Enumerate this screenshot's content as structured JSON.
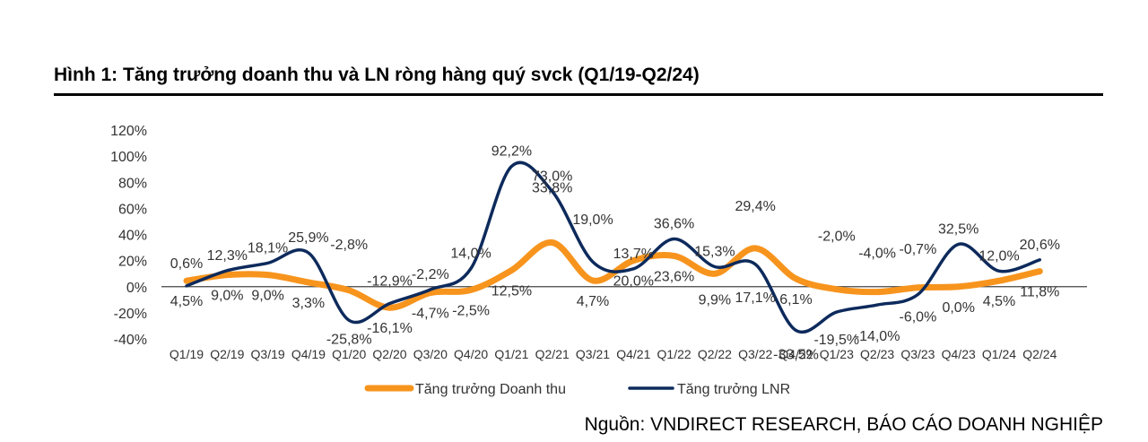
{
  "title": "Hình 1: Tăng trưởng doanh thu và LN ròng hàng quý svck (Q1/19-Q2/24)",
  "source": "Nguồn: VNDIRECT RESEARCH, BÁO CÁO DOANH NGHIỆP",
  "chart_data": {
    "type": "line",
    "categories": [
      "Q1/19",
      "Q2/19",
      "Q3/19",
      "Q4/19",
      "Q1/20",
      "Q2/20",
      "Q3/20",
      "Q4/20",
      "Q1/21",
      "Q2/21",
      "Q3/21",
      "Q4/21",
      "Q1/22",
      "Q2/22",
      "Q3/22",
      "Q4/22",
      "Q1/23",
      "Q2/23",
      "Q3/23",
      "Q4/23",
      "Q1/24",
      "Q2/24"
    ],
    "ylim": [
      -40,
      120
    ],
    "yticks": [
      "120%",
      "100%",
      "80%",
      "60%",
      "40%",
      "20%",
      "0%",
      "-20%",
      "-40%"
    ],
    "grid": false,
    "legend_position": "bottom",
    "series": [
      {
        "name": "Tăng trưởng Doanh thu",
        "color": "#F7941D",
        "values": [
          4.5,
          9.0,
          9.0,
          3.3,
          -2.8,
          -16.1,
          -4.7,
          -2.5,
          12.5,
          33.8,
          4.7,
          20.0,
          23.6,
          9.9,
          29.4,
          6.1,
          -2.0,
          -4.0,
          -0.7,
          0.0,
          4.5,
          11.8
        ],
        "labels": [
          "4,5%",
          "9,0%",
          "9,0%",
          "3,3%",
          "-2,8%",
          "-16,1%",
          "-4,7%",
          "-2,5%",
          "12,5%",
          "33,8%",
          "4,7%",
          "20,0%",
          "23,6%",
          "9,9%",
          "29,4%",
          "6,1%",
          "-2,0%",
          "-4,0%",
          "-0,7%",
          "0,0%",
          "4,5%",
          "11,8%"
        ]
      },
      {
        "name": "Tăng trưởng LNR",
        "color": "#0D2A5C",
        "values": [
          0.6,
          12.3,
          18.1,
          25.9,
          -25.8,
          -12.9,
          -2.2,
          14.0,
          92.2,
          73.0,
          19.0,
          13.7,
          36.6,
          15.3,
          17.1,
          -33.5,
          -19.5,
          -14.0,
          -6.0,
          32.5,
          12.0,
          20.6
        ],
        "labels": [
          "0,6%",
          "12,3%",
          "18,1%",
          "25,9%",
          "-25,8%",
          "-12,9%",
          "-2,2%",
          "14,0%",
          "92,2%",
          "73,0%",
          "19,0%",
          "13,7%",
          "36,6%",
          "15,3%",
          "17,1%",
          "-33,5%",
          "-19,5%",
          "-14,0%",
          "-6,0%",
          "32,5%",
          "12,0%",
          "20,6%"
        ]
      }
    ]
  }
}
